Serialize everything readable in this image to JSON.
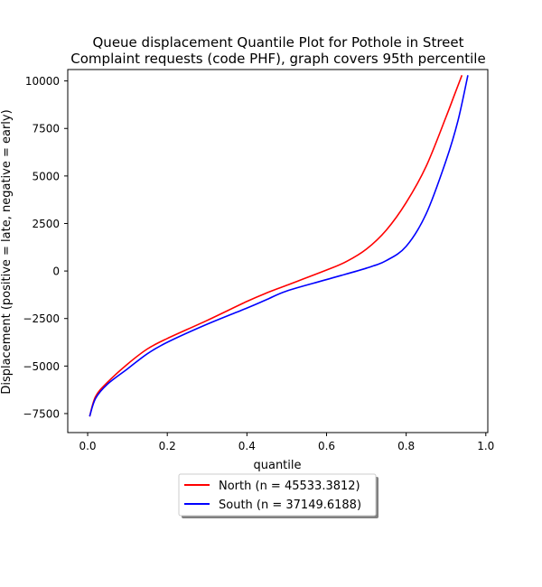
{
  "chart_data": {
    "type": "line",
    "title_lines": [
      "Queue displacement Quantile Plot for Pothole in Street",
      "Complaint  requests (code PHF), graph covers 95th percentile"
    ],
    "xlabel": "quantile",
    "ylabel": "Displacement (positive = late, negative = early)",
    "xlim": [
      -0.05,
      1.005
    ],
    "ylim": [
      -8500,
      10600
    ],
    "xticks": [
      0.0,
      0.2,
      0.4,
      0.6,
      0.8,
      1.0
    ],
    "xtick_labels": [
      "0.0",
      "0.2",
      "0.4",
      "0.6",
      "0.8",
      "1.0"
    ],
    "yticks": [
      -7500,
      -5000,
      -2500,
      0,
      2500,
      5000,
      7500,
      10000
    ],
    "ytick_labels": [
      "−7500",
      "−5000",
      "−2500",
      "0",
      "2500",
      "5000",
      "7500",
      "10000"
    ],
    "grid": false,
    "legend_position": "below plot, centered",
    "series": [
      {
        "name": "North (n = 45533.3812)",
        "color": "#ff0000",
        "x": [
          0.005,
          0.02,
          0.05,
          0.1,
          0.15,
          0.2,
          0.3,
          0.4,
          0.45,
          0.5,
          0.6,
          0.65,
          0.7,
          0.75,
          0.8,
          0.85,
          0.9,
          0.92,
          0.94
        ],
        "y": [
          -7650,
          -6600,
          -5850,
          -4900,
          -4100,
          -3550,
          -2600,
          -1600,
          -1150,
          -750,
          50,
          500,
          1150,
          2150,
          3600,
          5500,
          8100,
          9200,
          10300
        ]
      },
      {
        "name": "South (n = 37149.6188)",
        "color": "#0000ff",
        "x": [
          0.005,
          0.02,
          0.05,
          0.1,
          0.15,
          0.2,
          0.3,
          0.4,
          0.45,
          0.5,
          0.6,
          0.7,
          0.75,
          0.8,
          0.85,
          0.9,
          0.93,
          0.955
        ],
        "y": [
          -7650,
          -6700,
          -5950,
          -5150,
          -4350,
          -3750,
          -2800,
          -1950,
          -1500,
          -1050,
          -450,
          150,
          550,
          1300,
          3000,
          5800,
          7900,
          10300
        ]
      }
    ]
  }
}
